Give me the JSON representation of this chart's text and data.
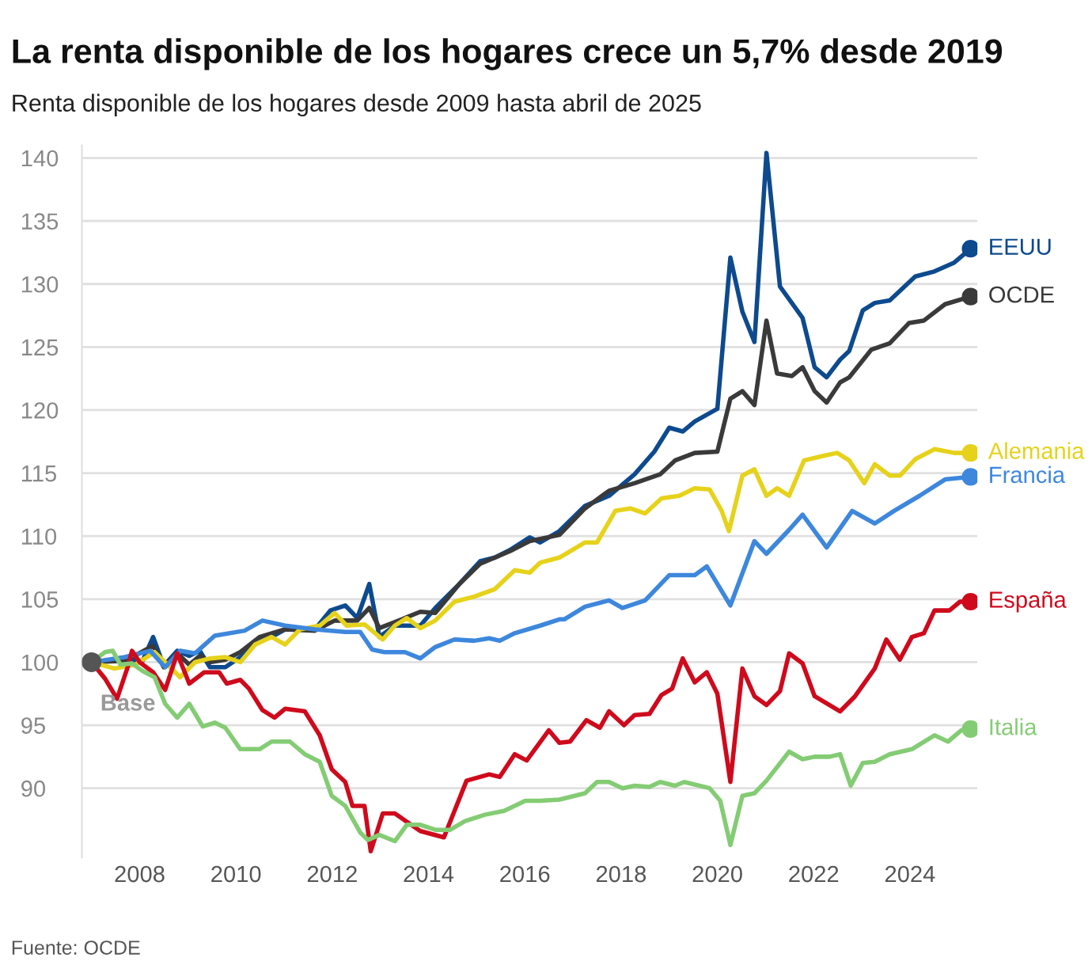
{
  "chart_data": {
    "type": "line",
    "title": "La renta disponible de los hogares crece un 5,7% desde 2019",
    "subtitle": "Renta disponible de los hogares desde 2009 hasta abril de 2025",
    "annotations": [
      {
        "text": "Base",
        "x": 2007.0,
        "y": 100
      },
      "Fuente: OCDE"
    ],
    "xlim": [
      2006.8,
      2025.4
    ],
    "xticks": [
      2008,
      2010,
      2012,
      2014,
      2016,
      2018,
      2020,
      2022,
      2024
    ],
    "ylim": [
      84.5,
      141
    ],
    "yticks": [
      90,
      95,
      100,
      105,
      110,
      115,
      120,
      125,
      130,
      135,
      140
    ],
    "grid": "y",
    "legend": false,
    "marker": "none",
    "line_style": "solid",
    "series": [
      {
        "name": "EEUU",
        "color": "#0d4a8e",
        "x": [
          2007.0,
          2007.69,
          2008.06,
          2008.28,
          2008.5,
          2008.78,
          2009.03,
          2009.25,
          2009.46,
          2009.78,
          2010.09,
          2010.4,
          2010.74,
          2011.02,
          2011.64,
          2011.96,
          2012.27,
          2012.52,
          2012.77,
          2012.98,
          2013.3,
          2013.83,
          2014.14,
          2014.64,
          2015.07,
          2015.38,
          2015.69,
          2016.1,
          2016.32,
          2016.72,
          2017.25,
          2017.75,
          2018.28,
          2018.69,
          2019.0,
          2019.28,
          2019.53,
          2020.0,
          2020.27,
          2020.52,
          2020.77,
          2021.02,
          2021.3,
          2021.77,
          2022.02,
          2022.27,
          2022.55,
          2022.74,
          2023.02,
          2023.27,
          2023.58,
          2024.11,
          2024.51,
          2024.92,
          2025.26
        ],
        "values": [
          100,
          100.2,
          100.1,
          102.0,
          99.7,
          100.9,
          100.5,
          100.9,
          99.6,
          99.6,
          100.4,
          101.6,
          102.0,
          102.6,
          102.6,
          104.1,
          104.5,
          103.5,
          106.2,
          102.0,
          102.9,
          102.9,
          104.3,
          106.2,
          108.0,
          108.3,
          108.9,
          109.9,
          109.5,
          110.4,
          112.4,
          113.2,
          114.9,
          116.7,
          118.6,
          118.3,
          119.1,
          120.1,
          132.1,
          127.8,
          125.4,
          140.4,
          129.8,
          127.3,
          123.4,
          122.6,
          124.0,
          124.7,
          127.9,
          128.5,
          128.7,
          130.6,
          131.0,
          131.7,
          132.8
        ]
      },
      {
        "name": "OCDE",
        "color": "#3a3a3a",
        "x": [
          2007.0,
          2007.69,
          2008.28,
          2008.5,
          2008.78,
          2009.03,
          2009.25,
          2009.46,
          2009.78,
          2010.09,
          2010.49,
          2011.02,
          2011.64,
          2012.05,
          2012.52,
          2012.77,
          2012.98,
          2013.51,
          2013.83,
          2014.14,
          2014.64,
          2015.07,
          2015.69,
          2016.1,
          2016.72,
          2017.25,
          2017.75,
          2018.28,
          2018.81,
          2019.12,
          2019.53,
          2020.0,
          2020.27,
          2020.52,
          2020.77,
          2021.02,
          2021.24,
          2021.55,
          2021.77,
          2022.02,
          2022.27,
          2022.55,
          2022.74,
          2023.2,
          2023.58,
          2023.98,
          2024.29,
          2024.73,
          2025.26
        ],
        "values": [
          100,
          100.1,
          101.3,
          99.6,
          100.7,
          99.8,
          100.5,
          100.0,
          100.2,
          100.8,
          102.0,
          102.6,
          102.5,
          103.3,
          103.3,
          104.3,
          102.7,
          103.5,
          104.0,
          103.9,
          106.2,
          107.8,
          108.8,
          109.6,
          110.1,
          112.2,
          113.6,
          114.2,
          114.9,
          116.0,
          116.6,
          116.7,
          120.9,
          121.5,
          120.4,
          127.1,
          122.9,
          122.7,
          123.4,
          121.5,
          120.6,
          122.2,
          122.6,
          124.8,
          125.3,
          126.9,
          127.1,
          128.4,
          129.0
        ]
      },
      {
        "name": "Alemania",
        "color": "#e6d21a",
        "x": [
          2007.0,
          2007.47,
          2007.91,
          2008.31,
          2008.53,
          2008.84,
          2009.15,
          2009.46,
          2009.78,
          2010.09,
          2010.4,
          2010.74,
          2011.02,
          2011.33,
          2011.74,
          2012.05,
          2012.3,
          2012.67,
          2013.05,
          2013.3,
          2013.55,
          2013.83,
          2014.14,
          2014.54,
          2014.95,
          2015.38,
          2015.79,
          2016.1,
          2016.32,
          2016.72,
          2017.25,
          2017.5,
          2017.88,
          2018.19,
          2018.5,
          2018.84,
          2019.21,
          2019.53,
          2019.84,
          2020.09,
          2020.24,
          2020.52,
          2020.77,
          2021.02,
          2021.24,
          2021.49,
          2021.8,
          2022.24,
          2022.49,
          2022.74,
          2023.05,
          2023.27,
          2023.58,
          2023.79,
          2024.11,
          2024.51,
          2024.92,
          2025.26
        ],
        "values": [
          100,
          99.5,
          99.8,
          100.8,
          100.0,
          98.8,
          100.0,
          100.3,
          100.4,
          100.0,
          101.4,
          102.0,
          101.4,
          102.6,
          102.9,
          103.9,
          102.9,
          103.0,
          101.8,
          102.9,
          103.5,
          102.7,
          103.3,
          104.8,
          105.2,
          105.8,
          107.3,
          107.1,
          107.9,
          108.3,
          109.5,
          109.5,
          112.0,
          112.2,
          111.8,
          113.0,
          113.2,
          113.8,
          113.7,
          112.0,
          110.4,
          114.8,
          115.3,
          113.2,
          113.8,
          113.2,
          116.0,
          116.4,
          116.6,
          116.0,
          114.2,
          115.7,
          114.8,
          114.8,
          116.1,
          116.9,
          116.6,
          116.6
        ]
      },
      {
        "name": "Francia",
        "color": "#3d87dd",
        "x": [
          2007.0,
          2007.69,
          2008.22,
          2008.53,
          2008.84,
          2009.15,
          2009.56,
          2010.18,
          2010.55,
          2011.02,
          2011.64,
          2012.27,
          2012.58,
          2012.83,
          2013.08,
          2013.51,
          2013.83,
          2014.14,
          2014.54,
          2014.95,
          2015.26,
          2015.48,
          2015.79,
          2016.32,
          2016.72,
          2016.82,
          2017.25,
          2017.75,
          2018.03,
          2018.5,
          2019.0,
          2019.53,
          2019.78,
          2020.27,
          2020.77,
          2021.02,
          2021.49,
          2021.77,
          2022.27,
          2022.8,
          2023.27,
          2023.67,
          2024.2,
          2024.73,
          2025.26
        ],
        "values": [
          100,
          100.4,
          100.9,
          99.6,
          100.9,
          100.7,
          102.1,
          102.5,
          103.3,
          102.9,
          102.6,
          102.4,
          102.4,
          101.0,
          100.8,
          100.8,
          100.3,
          101.2,
          101.8,
          101.7,
          101.9,
          101.7,
          102.3,
          102.9,
          103.4,
          103.4,
          104.4,
          104.9,
          104.3,
          104.9,
          106.9,
          106.9,
          107.6,
          104.5,
          109.6,
          108.6,
          110.5,
          111.7,
          109.1,
          112.0,
          111.0,
          112.0,
          113.2,
          114.5,
          114.7
        ]
      },
      {
        "name": "España",
        "color": "#cf0a1c",
        "x": [
          2007.0,
          2007.28,
          2007.53,
          2007.75,
          2007.84,
          2008.0,
          2008.28,
          2008.53,
          2008.78,
          2009.03,
          2009.34,
          2009.65,
          2009.81,
          2010.09,
          2010.27,
          2010.55,
          2010.8,
          2011.02,
          2011.43,
          2011.74,
          2011.99,
          2012.27,
          2012.42,
          2012.67,
          2012.8,
          2013.05,
          2013.3,
          2013.83,
          2014.32,
          2014.79,
          2015.26,
          2015.48,
          2015.79,
          2016.04,
          2016.5,
          2016.72,
          2016.94,
          2017.28,
          2017.56,
          2017.75,
          2018.06,
          2018.28,
          2018.59,
          2018.84,
          2019.06,
          2019.28,
          2019.53,
          2019.78,
          2020.0,
          2020.27,
          2020.52,
          2020.77,
          2021.02,
          2021.3,
          2021.49,
          2021.77,
          2022.02,
          2022.55,
          2022.86,
          2023.27,
          2023.51,
          2023.79,
          2024.04,
          2024.29,
          2024.51,
          2024.82,
          2025.04,
          2025.26
        ],
        "values": [
          100,
          98.7,
          97.1,
          99.6,
          100.9,
          100.0,
          99.2,
          97.8,
          100.7,
          98.3,
          99.2,
          99.2,
          98.3,
          98.6,
          97.9,
          96.2,
          95.6,
          96.3,
          96.1,
          94.2,
          91.5,
          90.5,
          88.6,
          88.6,
          85.0,
          88.0,
          88.0,
          86.6,
          86.1,
          90.6,
          91.1,
          90.9,
          92.7,
          92.2,
          94.6,
          93.6,
          93.7,
          95.4,
          94.8,
          96.1,
          95.0,
          95.8,
          95.9,
          97.4,
          97.9,
          100.3,
          98.4,
          99.2,
          97.5,
          90.5,
          99.5,
          97.3,
          96.6,
          97.7,
          100.7,
          99.9,
          97.3,
          96.1,
          97.3,
          99.5,
          101.8,
          100.2,
          102.0,
          102.3,
          104.1,
          104.1,
          104.8,
          104.8
        ]
      },
      {
        "name": "Italia",
        "color": "#84cc74",
        "x": [
          2007.0,
          2007.28,
          2007.44,
          2007.6,
          2007.84,
          2008.06,
          2008.31,
          2008.53,
          2008.78,
          2009.03,
          2009.31,
          2009.56,
          2009.78,
          2010.09,
          2010.49,
          2010.74,
          2011.12,
          2011.43,
          2011.74,
          2011.99,
          2012.27,
          2012.58,
          2012.74,
          2012.98,
          2013.3,
          2013.55,
          2013.83,
          2014.14,
          2014.45,
          2014.76,
          2015.17,
          2015.57,
          2016.01,
          2016.32,
          2016.72,
          2017.25,
          2017.5,
          2017.75,
          2018.03,
          2018.28,
          2018.59,
          2018.81,
          2019.12,
          2019.31,
          2019.84,
          2020.06,
          2020.27,
          2020.52,
          2020.77,
          2021.02,
          2021.49,
          2021.77,
          2022.02,
          2022.33,
          2022.55,
          2022.77,
          2023.02,
          2023.27,
          2023.58,
          2024.04,
          2024.51,
          2024.79,
          2025.07,
          2025.26
        ],
        "values": [
          100,
          100.8,
          100.9,
          99.8,
          99.9,
          99.3,
          98.8,
          96.7,
          95.6,
          96.7,
          94.9,
          95.2,
          94.8,
          93.1,
          93.1,
          93.7,
          93.7,
          92.7,
          92.1,
          89.4,
          88.6,
          86.5,
          85.9,
          86.3,
          85.8,
          87.1,
          87.1,
          86.7,
          86.7,
          87.4,
          87.9,
          88.2,
          89.0,
          89.0,
          89.1,
          89.6,
          90.5,
          90.5,
          90.0,
          90.2,
          90.1,
          90.5,
          90.2,
          90.5,
          90.0,
          89.0,
          85.5,
          89.4,
          89.6,
          90.6,
          92.9,
          92.3,
          92.5,
          92.5,
          92.7,
          90.2,
          92.0,
          92.1,
          92.7,
          93.1,
          94.2,
          93.7,
          94.6,
          94.7
        ]
      }
    ]
  }
}
